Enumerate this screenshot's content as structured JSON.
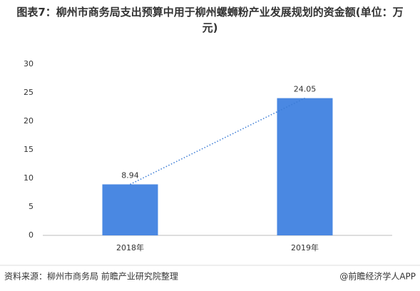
{
  "chart_data": {
    "type": "bar",
    "title": "图表7：柳州市商务局支出预算中用于柳州螺蛳粉产业发展规划的资金额(单位：万元)",
    "categories": [
      "2018年",
      "2019年"
    ],
    "values": [
      8.94,
      24.05
    ],
    "color": "#4a88e2",
    "trendline": true,
    "ylim": [
      0,
      30
    ],
    "yticks": [
      0,
      5,
      10,
      15,
      20,
      25,
      30
    ],
    "grid": false,
    "source": "资料来源：柳州市商务局 前瞻产业研究院整理",
    "credit": "@前瞻经济学人APP"
  }
}
